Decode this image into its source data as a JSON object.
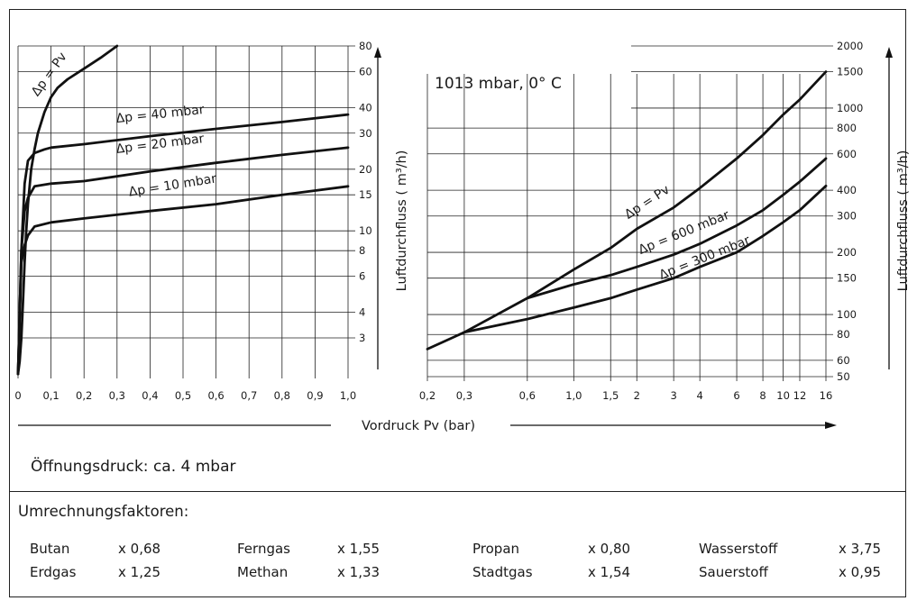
{
  "colors": {
    "line": "#111111",
    "grid": "#222222",
    "background": "#ffffff"
  },
  "chart_data": [
    {
      "type": "line",
      "xlabel": "Vordruck Pv (bar)",
      "ylabel": "Luftdurchfluss ( m³/h)",
      "x_ticks": [
        "0",
        "0,1",
        "0,2",
        "0,3",
        "0,4",
        "0,5",
        "0,6",
        "0,7",
        "0,8",
        "0,9",
        "1,0"
      ],
      "y_ticks": [
        "3",
        "4",
        "6",
        "8",
        "10",
        "15",
        "20",
        "30",
        "40",
        "60",
        "80"
      ],
      "xlim": [
        0,
        1.0
      ],
      "ylim": [
        2,
        80
      ],
      "y_scale": "log",
      "grid": true,
      "series": [
        {
          "name": "Δp = Pv",
          "x": [
            0.0,
            0.005,
            0.01,
            0.015,
            0.02,
            0.025,
            0.03,
            0.04,
            0.05,
            0.06,
            0.08,
            0.1,
            0.12,
            0.15,
            0.2,
            0.25,
            0.3
          ],
          "y": [
            2.0,
            2.3,
            3.0,
            4.5,
            7.0,
            10.0,
            13.5,
            20.0,
            25.0,
            30.0,
            38.0,
            45.0,
            50.0,
            55.0,
            62.0,
            70.0,
            80.0
          ]
        },
        {
          "name": "Δp = 40 mbar",
          "x": [
            0.0,
            0.01,
            0.02,
            0.03,
            0.05,
            0.08,
            0.1,
            0.2,
            0.4,
            0.6,
            0.8,
            1.0
          ],
          "y": [
            2.0,
            8.0,
            17.0,
            22.0,
            24.0,
            25.0,
            25.5,
            26.5,
            29.0,
            31.5,
            34.0,
            37.0
          ]
        },
        {
          "name": "Δp = 20 mbar",
          "x": [
            0.0,
            0.01,
            0.02,
            0.03,
            0.05,
            0.1,
            0.2,
            0.4,
            0.6,
            0.8,
            1.0
          ],
          "y": [
            2.0,
            8.0,
            12.5,
            14.5,
            16.5,
            17.0,
            17.5,
            19.5,
            21.5,
            23.5,
            25.5
          ]
        },
        {
          "name": "Δp = 10 mbar",
          "x": [
            0.0,
            0.01,
            0.02,
            0.03,
            0.05,
            0.1,
            0.2,
            0.4,
            0.6,
            0.8,
            1.0
          ],
          "y": [
            2.0,
            7.0,
            8.5,
            9.5,
            10.5,
            11.0,
            11.5,
            12.5,
            13.5,
            15.0,
            16.5
          ]
        }
      ],
      "curve_labels": [
        "Δp = Pv",
        "Δp = 40 mbar",
        "Δp = 20 mbar",
        "Δp = 10 mbar"
      ]
    },
    {
      "type": "line",
      "xlabel": "Vordruck Pv (bar)",
      "ylabel": "Luftdurchfluss ( m³/h)",
      "x_ticks": [
        "0,2",
        "0,3",
        "0,6",
        "1,0",
        "1,5",
        "2",
        "3",
        "4",
        "6",
        "8",
        "10",
        "12",
        "16"
      ],
      "y_ticks": [
        "50",
        "60",
        "80",
        "100",
        "150",
        "200",
        "300",
        "400",
        "600",
        "800",
        "1000",
        "1500",
        "2000"
      ],
      "xlim": [
        0.2,
        16
      ],
      "ylim": [
        50,
        2000
      ],
      "annotation": "1013 mbar, 0° C",
      "grid": true,
      "series": [
        {
          "name": "Δp = Pv",
          "x": [
            0.2,
            0.3,
            0.6,
            1.0,
            1.5,
            2,
            3,
            4,
            6,
            8,
            10,
            12,
            16
          ],
          "y": [
            68,
            82,
            120,
            165,
            210,
            260,
            330,
            410,
            570,
            740,
            930,
            1100,
            1500
          ]
        },
        {
          "name": "Δp = 600 mbar",
          "x": [
            0.6,
            1.0,
            1.5,
            2,
            3,
            4,
            6,
            8,
            10,
            12,
            16
          ],
          "y": [
            120,
            140,
            155,
            170,
            195,
            220,
            270,
            320,
            380,
            440,
            570
          ]
        },
        {
          "name": "Δp = 300 mbar",
          "x": [
            0.3,
            0.6,
            1.0,
            1.5,
            2,
            3,
            4,
            6,
            8,
            10,
            12,
            16
          ],
          "y": [
            82,
            95,
            108,
            120,
            132,
            150,
            170,
            200,
            240,
            280,
            320,
            420
          ]
        }
      ],
      "curve_labels": [
        "Δp = Pv",
        "Δp = 600 mbar",
        "Δp = 300 mbar"
      ]
    }
  ],
  "opening_pressure": "Öffnungsdruck: ca. 4 mbar",
  "factors": {
    "title": "Umrechnungsfaktoren:",
    "items": [
      {
        "name": "Butan",
        "value": "x 0,68"
      },
      {
        "name": "Erdgas",
        "value": "x 1,25"
      },
      {
        "name": "Ferngas",
        "value": "x 1,55"
      },
      {
        "name": "Methan",
        "value": "x 1,33"
      },
      {
        "name": "Propan",
        "value": "x 0,80"
      },
      {
        "name": "Stadtgas",
        "value": "x 1,54"
      },
      {
        "name": "Wasserstoff",
        "value": "x 3,75"
      },
      {
        "name": "Sauerstoff",
        "value": "x 0,95"
      }
    ]
  }
}
